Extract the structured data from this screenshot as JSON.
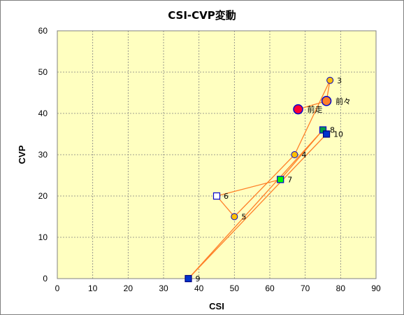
{
  "chart_data": {
    "type": "scatter",
    "title": "CSI-CVP変動",
    "xlabel": "CSI",
    "ylabel": "CVP",
    "xlim": [
      0,
      90
    ],
    "ylim": [
      0,
      60
    ],
    "x_ticks": [
      0,
      10,
      20,
      30,
      40,
      50,
      60,
      70,
      80,
      90
    ],
    "y_ticks": [
      0,
      10,
      20,
      30,
      40,
      50,
      60
    ],
    "grid": true,
    "plot_background": "#ffffc0",
    "line_color": "#ff7f27",
    "grid_color": "#808080",
    "path_order": [
      "前走",
      "前々",
      "3",
      "4",
      "5",
      "6",
      "7",
      "8",
      "9",
      "10"
    ],
    "points": [
      {
        "label": "前走",
        "x": 68,
        "y": 41,
        "marker": "circle",
        "size": "large",
        "fill": "#ff0033",
        "stroke": "#0000cc"
      },
      {
        "label": "前々",
        "x": 76,
        "y": 43,
        "marker": "circle",
        "size": "large",
        "fill": "#ff7f27",
        "stroke": "#0000cc"
      },
      {
        "label": "3",
        "x": 77,
        "y": 48,
        "marker": "circle",
        "size": "small",
        "fill": "#ffc000",
        "stroke": "#0000cc"
      },
      {
        "label": "4",
        "x": 67,
        "y": 30,
        "marker": "circle",
        "size": "small",
        "fill": "#ffc000",
        "stroke": "#0000cc"
      },
      {
        "label": "5",
        "x": 50,
        "y": 15,
        "marker": "circle",
        "size": "small",
        "fill": "#ffc000",
        "stroke": "#0000cc"
      },
      {
        "label": "6",
        "x": 45,
        "y": 20,
        "marker": "square",
        "size": "small",
        "fill": "#ffffff",
        "stroke": "#0000cc"
      },
      {
        "label": "7",
        "x": 63,
        "y": 24,
        "marker": "square",
        "size": "small",
        "fill": "#00ff00",
        "stroke": "#0000cc"
      },
      {
        "label": "8",
        "x": 75,
        "y": 36,
        "marker": "square",
        "size": "small",
        "fill": "#00a040",
        "stroke": "#0000cc"
      },
      {
        "label": "9",
        "x": 37,
        "y": 0,
        "marker": "square",
        "size": "small",
        "fill": "#0033cc",
        "stroke": "#000080"
      },
      {
        "label": "10",
        "x": 76,
        "y": 35,
        "marker": "square",
        "size": "small",
        "fill": "#0033cc",
        "stroke": "#000080"
      }
    ]
  }
}
